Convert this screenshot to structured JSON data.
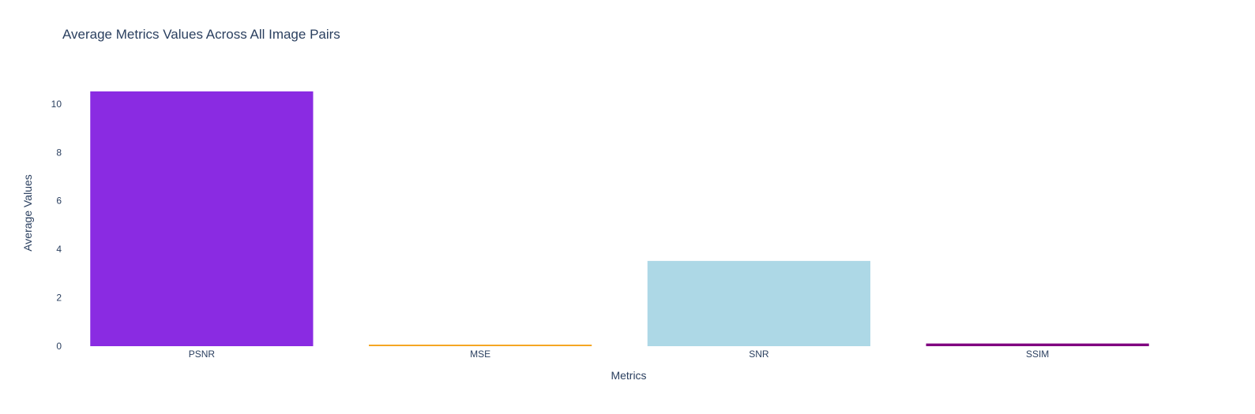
{
  "chart_data": {
    "type": "bar",
    "title": "Average Metrics Values Across All Image Pairs",
    "xlabel": "Metrics",
    "ylabel": "Average Values",
    "categories": [
      "PSNR",
      "MSE",
      "SNR",
      "SSIM"
    ],
    "values": [
      10.52,
      0.06,
      3.52,
      0.11
    ],
    "colors": [
      "#8a2be2",
      "#f5a623",
      "#add8e6",
      "#800080"
    ],
    "yticks": [
      0,
      2,
      4,
      6,
      8,
      10
    ],
    "ylim": [
      0,
      11.07
    ],
    "grid": false,
    "legend": false
  }
}
